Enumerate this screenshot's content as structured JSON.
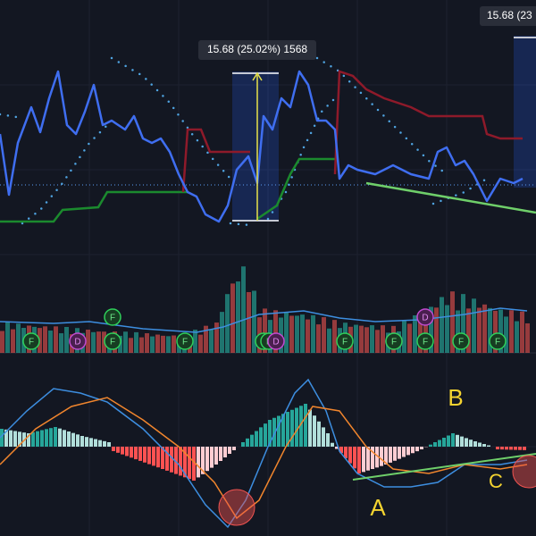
{
  "tooltips": [
    "15.68 (25.02%) 1568",
    "15.68 (23"
  ],
  "events": [
    "F",
    "D",
    "F",
    "F",
    "F",
    "F",
    "F",
    "D",
    "F",
    "D",
    "F",
    "F",
    "F",
    "D",
    "F"
  ],
  "annotations": [
    "A",
    "B",
    "C"
  ]
}
